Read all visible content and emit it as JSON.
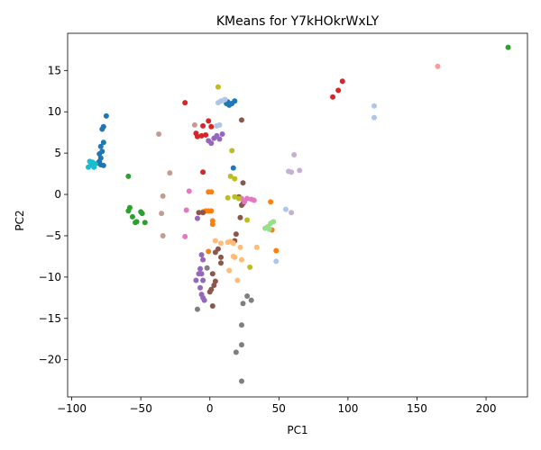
{
  "chart_data": {
    "type": "scatter",
    "title": "KMeans for Y7kHOkrWxLY",
    "xlabel": "PC1",
    "ylabel": "PC2",
    "xlim": [
      -103,
      230
    ],
    "ylim": [
      -24.5,
      19.5
    ],
    "xticks": [
      -100,
      -50,
      0,
      50,
      100,
      150,
      200
    ],
    "yticks": [
      -20,
      -15,
      -10,
      -5,
      0,
      5,
      10,
      15
    ],
    "grid": false,
    "legend": "none",
    "series": [
      {
        "color": "#1f77b4",
        "points": [
          [
            -75,
            9.5
          ],
          [
            -77,
            8.2
          ],
          [
            -78,
            7.9
          ],
          [
            -77,
            6.3
          ],
          [
            -79,
            5.8
          ],
          [
            -78,
            5.2
          ],
          [
            -80,
            4.9
          ],
          [
            -79,
            4.4
          ],
          [
            -79,
            3.6
          ],
          [
            -81,
            3.8
          ],
          [
            -77,
            3.5
          ],
          [
            -80,
            4.0
          ],
          [
            12,
            11.0
          ],
          [
            14,
            10.8
          ],
          [
            16,
            11.0
          ],
          [
            18,
            11.3
          ],
          [
            13,
            11.2
          ],
          [
            17,
            3.2
          ]
        ]
      },
      {
        "color": "#ff7f0e",
        "points": [
          [
            -1,
            0.3
          ],
          [
            1,
            0.3
          ],
          [
            -3,
            -2.0
          ],
          [
            -1,
            -2.0
          ],
          [
            1,
            -2.0
          ],
          [
            -5,
            -2.1
          ],
          [
            2,
            -3.2
          ],
          [
            2,
            -3.6
          ],
          [
            -1,
            -6.9
          ],
          [
            44,
            -0.9
          ],
          [
            45,
            -4.3
          ],
          [
            48,
            -6.8
          ]
        ]
      },
      {
        "color": "#2ca02c",
        "points": [
          [
            -59,
            2.2
          ],
          [
            -58,
            -1.6
          ],
          [
            -59,
            -2.0
          ],
          [
            -56,
            -2.7
          ],
          [
            -53,
            -3.3
          ],
          [
            -54,
            -3.4
          ],
          [
            -50,
            -2.1
          ],
          [
            -49,
            -2.3
          ],
          [
            -47,
            -3.4
          ],
          [
            216,
            17.8
          ]
        ]
      },
      {
        "color": "#d62728",
        "points": [
          [
            -18,
            11.1
          ],
          [
            -10,
            7.4
          ],
          [
            -9,
            7.0
          ],
          [
            -6,
            7.1
          ],
          [
            -3,
            7.2
          ],
          [
            -5,
            8.3
          ],
          [
            -1,
            8.9
          ],
          [
            1,
            8.2
          ],
          [
            -5,
            2.7
          ],
          [
            89,
            11.8
          ],
          [
            93,
            12.6
          ],
          [
            96,
            13.7
          ]
        ]
      },
      {
        "color": "#9467bd",
        "points": [
          [
            -1,
            6.5
          ],
          [
            1,
            6.2
          ],
          [
            3,
            6.8
          ],
          [
            5,
            7.1
          ],
          [
            7,
            6.7
          ],
          [
            9,
            7.3
          ],
          [
            -10,
            -10.4
          ],
          [
            -8,
            -9.6
          ],
          [
            -7,
            -9.0
          ],
          [
            -6,
            -9.6
          ],
          [
            -5,
            -10.4
          ],
          [
            -7,
            -11.3
          ],
          [
            -6,
            -12.1
          ],
          [
            -5,
            -12.5
          ],
          [
            -4,
            -12.8
          ],
          [
            -6,
            -7.3
          ],
          [
            -5,
            -7.9
          ],
          [
            -9,
            -2.9
          ]
        ]
      },
      {
        "color": "#8c564b",
        "points": [
          [
            -8,
            -2.2
          ],
          [
            -5,
            -2.2
          ],
          [
            4,
            -7.0
          ],
          [
            6,
            -6.6
          ],
          [
            8,
            -7.6
          ],
          [
            8,
            -8.3
          ],
          [
            2,
            -9.6
          ],
          [
            4,
            -10.5
          ],
          [
            3,
            -11.0
          ],
          [
            1,
            -11.5
          ],
          [
            0,
            -11.8
          ],
          [
            2,
            -13.5
          ],
          [
            18,
            -5.6
          ],
          [
            19,
            -4.8
          ],
          [
            22,
            -2.8
          ],
          [
            21,
            -0.3
          ],
          [
            23,
            -1.3
          ],
          [
            24,
            -1.1
          ],
          [
            24,
            1.4
          ],
          [
            23,
            9.0
          ]
        ]
      },
      {
        "color": "#e377c2",
        "points": [
          [
            -15,
            0.4
          ],
          [
            -17,
            -1.9
          ],
          [
            -18,
            -5.1
          ],
          [
            23,
            -0.5
          ],
          [
            27,
            -0.5
          ],
          [
            30,
            -0.6
          ],
          [
            32,
            -0.7
          ],
          [
            25,
            -0.9
          ]
        ]
      },
      {
        "color": "#7f7f7f",
        "points": [
          [
            -9,
            -13.9
          ],
          [
            -2,
            -8.9
          ],
          [
            19,
            -19.1
          ],
          [
            23,
            -22.6
          ],
          [
            23,
            -18.2
          ],
          [
            23,
            -15.8
          ],
          [
            24,
            -13.2
          ],
          [
            27,
            -12.3
          ],
          [
            30,
            -12.8
          ]
        ]
      },
      {
        "color": "#bcbd22",
        "points": [
          [
            6,
            13.0
          ],
          [
            16,
            5.3
          ],
          [
            15,
            2.2
          ],
          [
            18,
            1.9
          ],
          [
            13,
            -0.4
          ],
          [
            18,
            -0.3
          ],
          [
            21,
            -0.5
          ],
          [
            27,
            -3.1
          ],
          [
            29,
            -8.8
          ]
        ]
      },
      {
        "color": "#17becf",
        "points": [
          [
            -88,
            3.3
          ],
          [
            -86,
            3.6
          ],
          [
            -84,
            3.3
          ],
          [
            -85,
            3.9
          ],
          [
            -87,
            4.0
          ],
          [
            -83,
            3.7
          ]
        ]
      },
      {
        "color": "#aec7e8",
        "points": [
          [
            6,
            11.1
          ],
          [
            8,
            11.3
          ],
          [
            10,
            11.4
          ],
          [
            11,
            11.5
          ],
          [
            5,
            8.3
          ],
          [
            7,
            8.4
          ],
          [
            55,
            -1.8
          ],
          [
            48,
            -8.1
          ],
          [
            119,
            10.7
          ],
          [
            119,
            9.3
          ]
        ]
      },
      {
        "color": "#ffbb78",
        "points": [
          [
            4,
            -5.6
          ],
          [
            8,
            -5.9
          ],
          [
            13,
            -5.8
          ],
          [
            15,
            -5.7
          ],
          [
            17,
            -5.9
          ],
          [
            22,
            -6.4
          ],
          [
            17,
            -7.5
          ],
          [
            18,
            -7.6
          ],
          [
            23,
            -7.9
          ],
          [
            14,
            -9.2
          ],
          [
            20,
            -10.4
          ],
          [
            34,
            -6.4
          ]
        ]
      },
      {
        "color": "#98df8a",
        "points": [
          [
            40,
            -4.1
          ],
          [
            42,
            -3.9
          ],
          [
            43,
            -4.2
          ],
          [
            44,
            -3.5
          ],
          [
            46,
            -3.3
          ]
        ]
      },
      {
        "color": "#ff9896",
        "points": [
          [
            165,
            15.5
          ]
        ]
      },
      {
        "color": "#c5b0d5",
        "points": [
          [
            57,
            2.8
          ],
          [
            59,
            2.7
          ],
          [
            61,
            4.8
          ],
          [
            65,
            2.9
          ],
          [
            59,
            -2.2
          ]
        ]
      },
      {
        "color": "#c49c94",
        "points": [
          [
            -37,
            7.3
          ],
          [
            -34,
            -0.2
          ],
          [
            -35,
            -2.3
          ],
          [
            -34,
            -5.0
          ],
          [
            -29,
            2.6
          ],
          [
            -11,
            8.4
          ]
        ]
      }
    ]
  }
}
